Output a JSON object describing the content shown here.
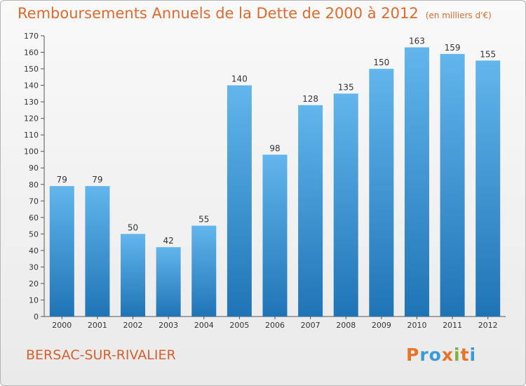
{
  "title": "Remboursements Annuels de la Dette de 2000 à 2012",
  "unit": "(en milliers d'€)",
  "commune": "BERSAC-SUR-RIVALIER",
  "logo": {
    "text": "Proxiti",
    "letter_colors": [
      "#e8742a",
      "#3a9ad9",
      "#3a9ad9",
      "#e8742a",
      "#7ab33f",
      "#e8742a",
      "#3a9ad9"
    ]
  },
  "colors": {
    "bar_top": "#62b6ec",
    "bar_bottom": "#1f74b6",
    "title": "#e06a2c"
  },
  "chart_data": {
    "type": "bar",
    "title": "Remboursements Annuels de la Dette de 2000 à 2012",
    "xlabel": "",
    "ylabel": "",
    "categories": [
      "2000",
      "2001",
      "2002",
      "2003",
      "2004",
      "2005",
      "2006",
      "2007",
      "2008",
      "2009",
      "2010",
      "2011",
      "2012"
    ],
    "values": [
      79,
      79,
      50,
      42,
      55,
      140,
      98,
      128,
      135,
      150,
      163,
      159,
      155
    ],
    "ylim": [
      0,
      170
    ],
    "yticks": [
      0,
      10,
      20,
      30,
      40,
      50,
      60,
      70,
      80,
      90,
      100,
      110,
      120,
      130,
      140,
      150,
      160,
      170
    ],
    "grid": false,
    "legend": "none",
    "data_labels": true
  }
}
